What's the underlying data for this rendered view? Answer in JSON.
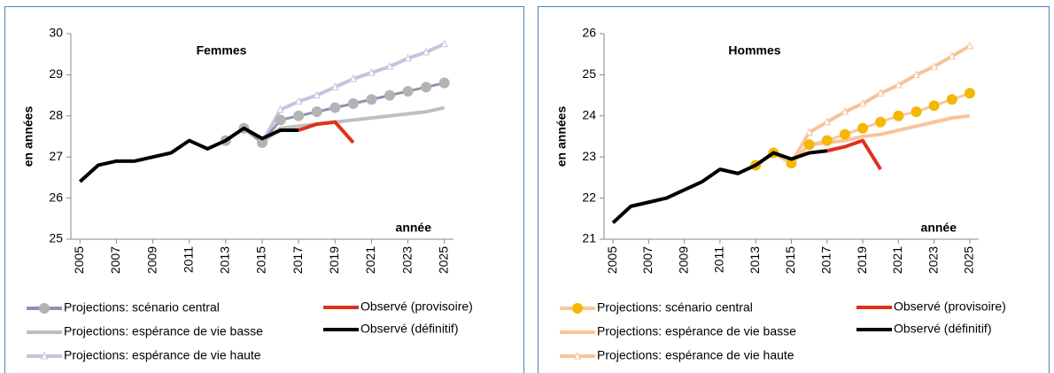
{
  "chart_data": [
    {
      "type": "line",
      "title": "Femmes",
      "y_label": "en années",
      "x_label": "année",
      "xlim": [
        2004.5,
        2025.5
      ],
      "xticks": [
        2005,
        2007,
        2009,
        2011,
        2013,
        2015,
        2017,
        2019,
        2021,
        2023,
        2025
      ],
      "ylim": [
        25,
        30
      ],
      "yticks": [
        25,
        26,
        27,
        28,
        29,
        30
      ],
      "series": [
        {
          "name": "Projections: scénario central",
          "color": "#948fb5",
          "marker": "circle",
          "marker_color": "#b3b3b3",
          "x": [
            2013,
            2014,
            2015,
            2016,
            2017,
            2018,
            2019,
            2020,
            2021,
            2022,
            2023,
            2024,
            2025
          ],
          "values": [
            27.4,
            27.7,
            27.35,
            27.9,
            28.0,
            28.1,
            28.2,
            28.3,
            28.4,
            28.5,
            28.6,
            28.7,
            28.8
          ]
        },
        {
          "name": "Projections: espérance de vie basse",
          "color": "#bfbfbf",
          "marker": "none",
          "marker_color": "#bfbfbf",
          "x": [
            2013,
            2014,
            2015,
            2016,
            2017,
            2018,
            2019,
            2020,
            2021,
            2022,
            2023,
            2024,
            2025
          ],
          "values": [
            27.4,
            27.7,
            27.35,
            27.7,
            27.75,
            27.8,
            27.85,
            27.9,
            27.95,
            28.0,
            28.05,
            28.1,
            28.2
          ]
        },
        {
          "name": "Projections: espérance de vie haute",
          "color": "#c9c1e0",
          "marker": "triangle",
          "marker_color": "#ffffff",
          "x": [
            2013,
            2014,
            2015,
            2016,
            2017,
            2018,
            2019,
            2020,
            2021,
            2022,
            2023,
            2024,
            2025
          ],
          "values": [
            27.4,
            27.7,
            27.35,
            28.15,
            28.35,
            28.5,
            28.7,
            28.9,
            29.05,
            29.2,
            29.4,
            29.55,
            29.75
          ]
        },
        {
          "name": "Observé (provisoire)",
          "color": "#e0301e",
          "marker": "none",
          "marker_color": "#e0301e",
          "x": [
            2017,
            2018,
            2019,
            2020
          ],
          "values": [
            27.65,
            27.8,
            27.85,
            27.35
          ]
        },
        {
          "name": "Observé (définitif)",
          "color": "#000000",
          "marker": "none",
          "marker_color": "#000000",
          "x": [
            2005,
            2006,
            2007,
            2008,
            2009,
            2010,
            2011,
            2012,
            2013,
            2014,
            2015,
            2016,
            2017
          ],
          "values": [
            26.4,
            26.8,
            26.9,
            26.9,
            27.0,
            27.1,
            27.4,
            27.2,
            27.4,
            27.7,
            27.45,
            27.65,
            27.65
          ]
        }
      ]
    },
    {
      "type": "line",
      "title": "Hommes",
      "y_label": "en années",
      "x_label": "année",
      "xlim": [
        2004.5,
        2025.5
      ],
      "xticks": [
        2005,
        2007,
        2009,
        2011,
        2013,
        2015,
        2017,
        2019,
        2021,
        2023,
        2025
      ],
      "ylim": [
        21,
        26
      ],
      "yticks": [
        21,
        22,
        23,
        24,
        25,
        26
      ],
      "series": [
        {
          "name": "Projections: scénario central",
          "color": "#f7c89c",
          "marker": "circle",
          "marker_color": "#f5b700",
          "x": [
            2013,
            2014,
            2015,
            2016,
            2017,
            2018,
            2019,
            2020,
            2021,
            2022,
            2023,
            2024,
            2025
          ],
          "values": [
            22.8,
            23.1,
            22.85,
            23.3,
            23.4,
            23.55,
            23.7,
            23.85,
            24.0,
            24.1,
            24.25,
            24.4,
            24.55
          ]
        },
        {
          "name": "Projections: espérance de vie basse",
          "color": "#f8c49c",
          "marker": "none",
          "marker_color": "#f8c49c",
          "x": [
            2013,
            2014,
            2015,
            2016,
            2017,
            2018,
            2019,
            2020,
            2021,
            2022,
            2023,
            2024,
            2025
          ],
          "values": [
            22.8,
            23.1,
            22.85,
            23.3,
            23.35,
            23.4,
            23.5,
            23.55,
            23.65,
            23.75,
            23.85,
            23.95,
            24.0
          ]
        },
        {
          "name": "Projections: espérance de vie haute",
          "color": "#f6c49a",
          "marker": "triangle",
          "marker_color": "#ffffff",
          "x": [
            2013,
            2014,
            2015,
            2016,
            2017,
            2018,
            2019,
            2020,
            2021,
            2022,
            2023,
            2024,
            2025
          ],
          "values": [
            22.8,
            23.1,
            22.85,
            23.6,
            23.85,
            24.1,
            24.3,
            24.55,
            24.75,
            25.0,
            25.2,
            25.45,
            25.7
          ]
        },
        {
          "name": "Observé (provisoire)",
          "color": "#e0301e",
          "marker": "none",
          "marker_color": "#e0301e",
          "x": [
            2017,
            2018,
            2019,
            2020
          ],
          "values": [
            23.15,
            23.25,
            23.4,
            22.7
          ]
        },
        {
          "name": "Observé (définitif)",
          "color": "#000000",
          "marker": "none",
          "marker_color": "#000000",
          "x": [
            2005,
            2006,
            2007,
            2008,
            2009,
            2010,
            2011,
            2012,
            2013,
            2014,
            2015,
            2016,
            2017
          ],
          "values": [
            21.4,
            21.8,
            21.9,
            22.0,
            22.2,
            22.4,
            22.7,
            22.6,
            22.8,
            23.1,
            22.95,
            23.1,
            23.15
          ]
        }
      ]
    }
  ]
}
